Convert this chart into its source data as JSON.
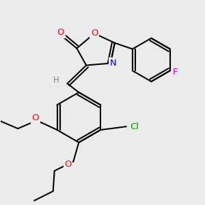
{
  "bg_color": "#ebebeb",
  "bond_color": "#000000",
  "bond_width": 1.5,
  "atom_colors": {
    "O": "#ff0000",
    "N": "#0000cd",
    "F": "#cc00cc",
    "Cl": "#009900",
    "H": "#808080",
    "C": "#000000"
  },
  "font_size": 9.5
}
